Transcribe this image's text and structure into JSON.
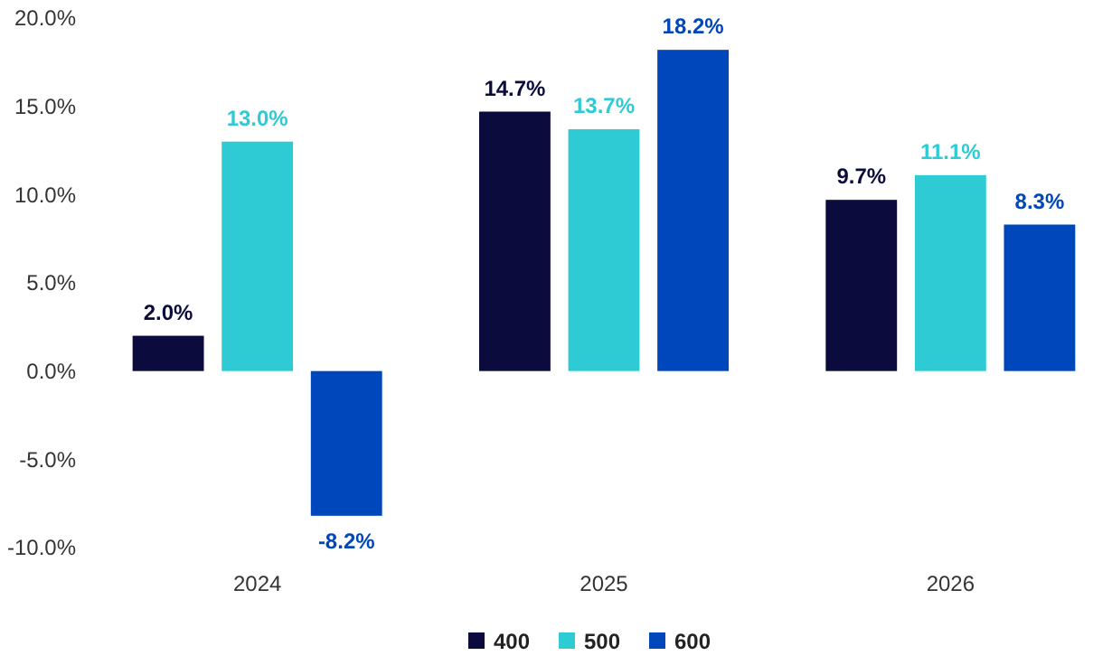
{
  "chart_data": {
    "type": "bar",
    "categories": [
      "2024",
      "2025",
      "2026"
    ],
    "series": [
      {
        "name": "400",
        "color": "#0b0b3d",
        "values": [
          2.0,
          14.7,
          9.7
        ],
        "value_labels": [
          "2.0%",
          "14.7%",
          "9.7%"
        ]
      },
      {
        "name": "500",
        "color": "#2ecbd4",
        "values": [
          13.0,
          13.7,
          11.1
        ],
        "value_labels": [
          "13.0%",
          "13.7%",
          "11.1%"
        ]
      },
      {
        "name": "600",
        "color": "#0047bb",
        "values": [
          -8.2,
          18.2,
          8.3
        ],
        "value_labels": [
          "-8.2%",
          "18.2%",
          "8.3%"
        ]
      }
    ],
    "ylim": [
      -10,
      20
    ],
    "yticks": [
      {
        "value": -10,
        "label": "-10.0%"
      },
      {
        "value": -5,
        "label": "-5.0%"
      },
      {
        "value": 0,
        "label": "0.0%"
      },
      {
        "value": 5,
        "label": "5.0%"
      },
      {
        "value": 10,
        "label": "10.0%"
      },
      {
        "value": 15,
        "label": "15.0%"
      },
      {
        "value": 20,
        "label": "20.0%"
      }
    ],
    "grid": false,
    "legend": "bottom"
  }
}
